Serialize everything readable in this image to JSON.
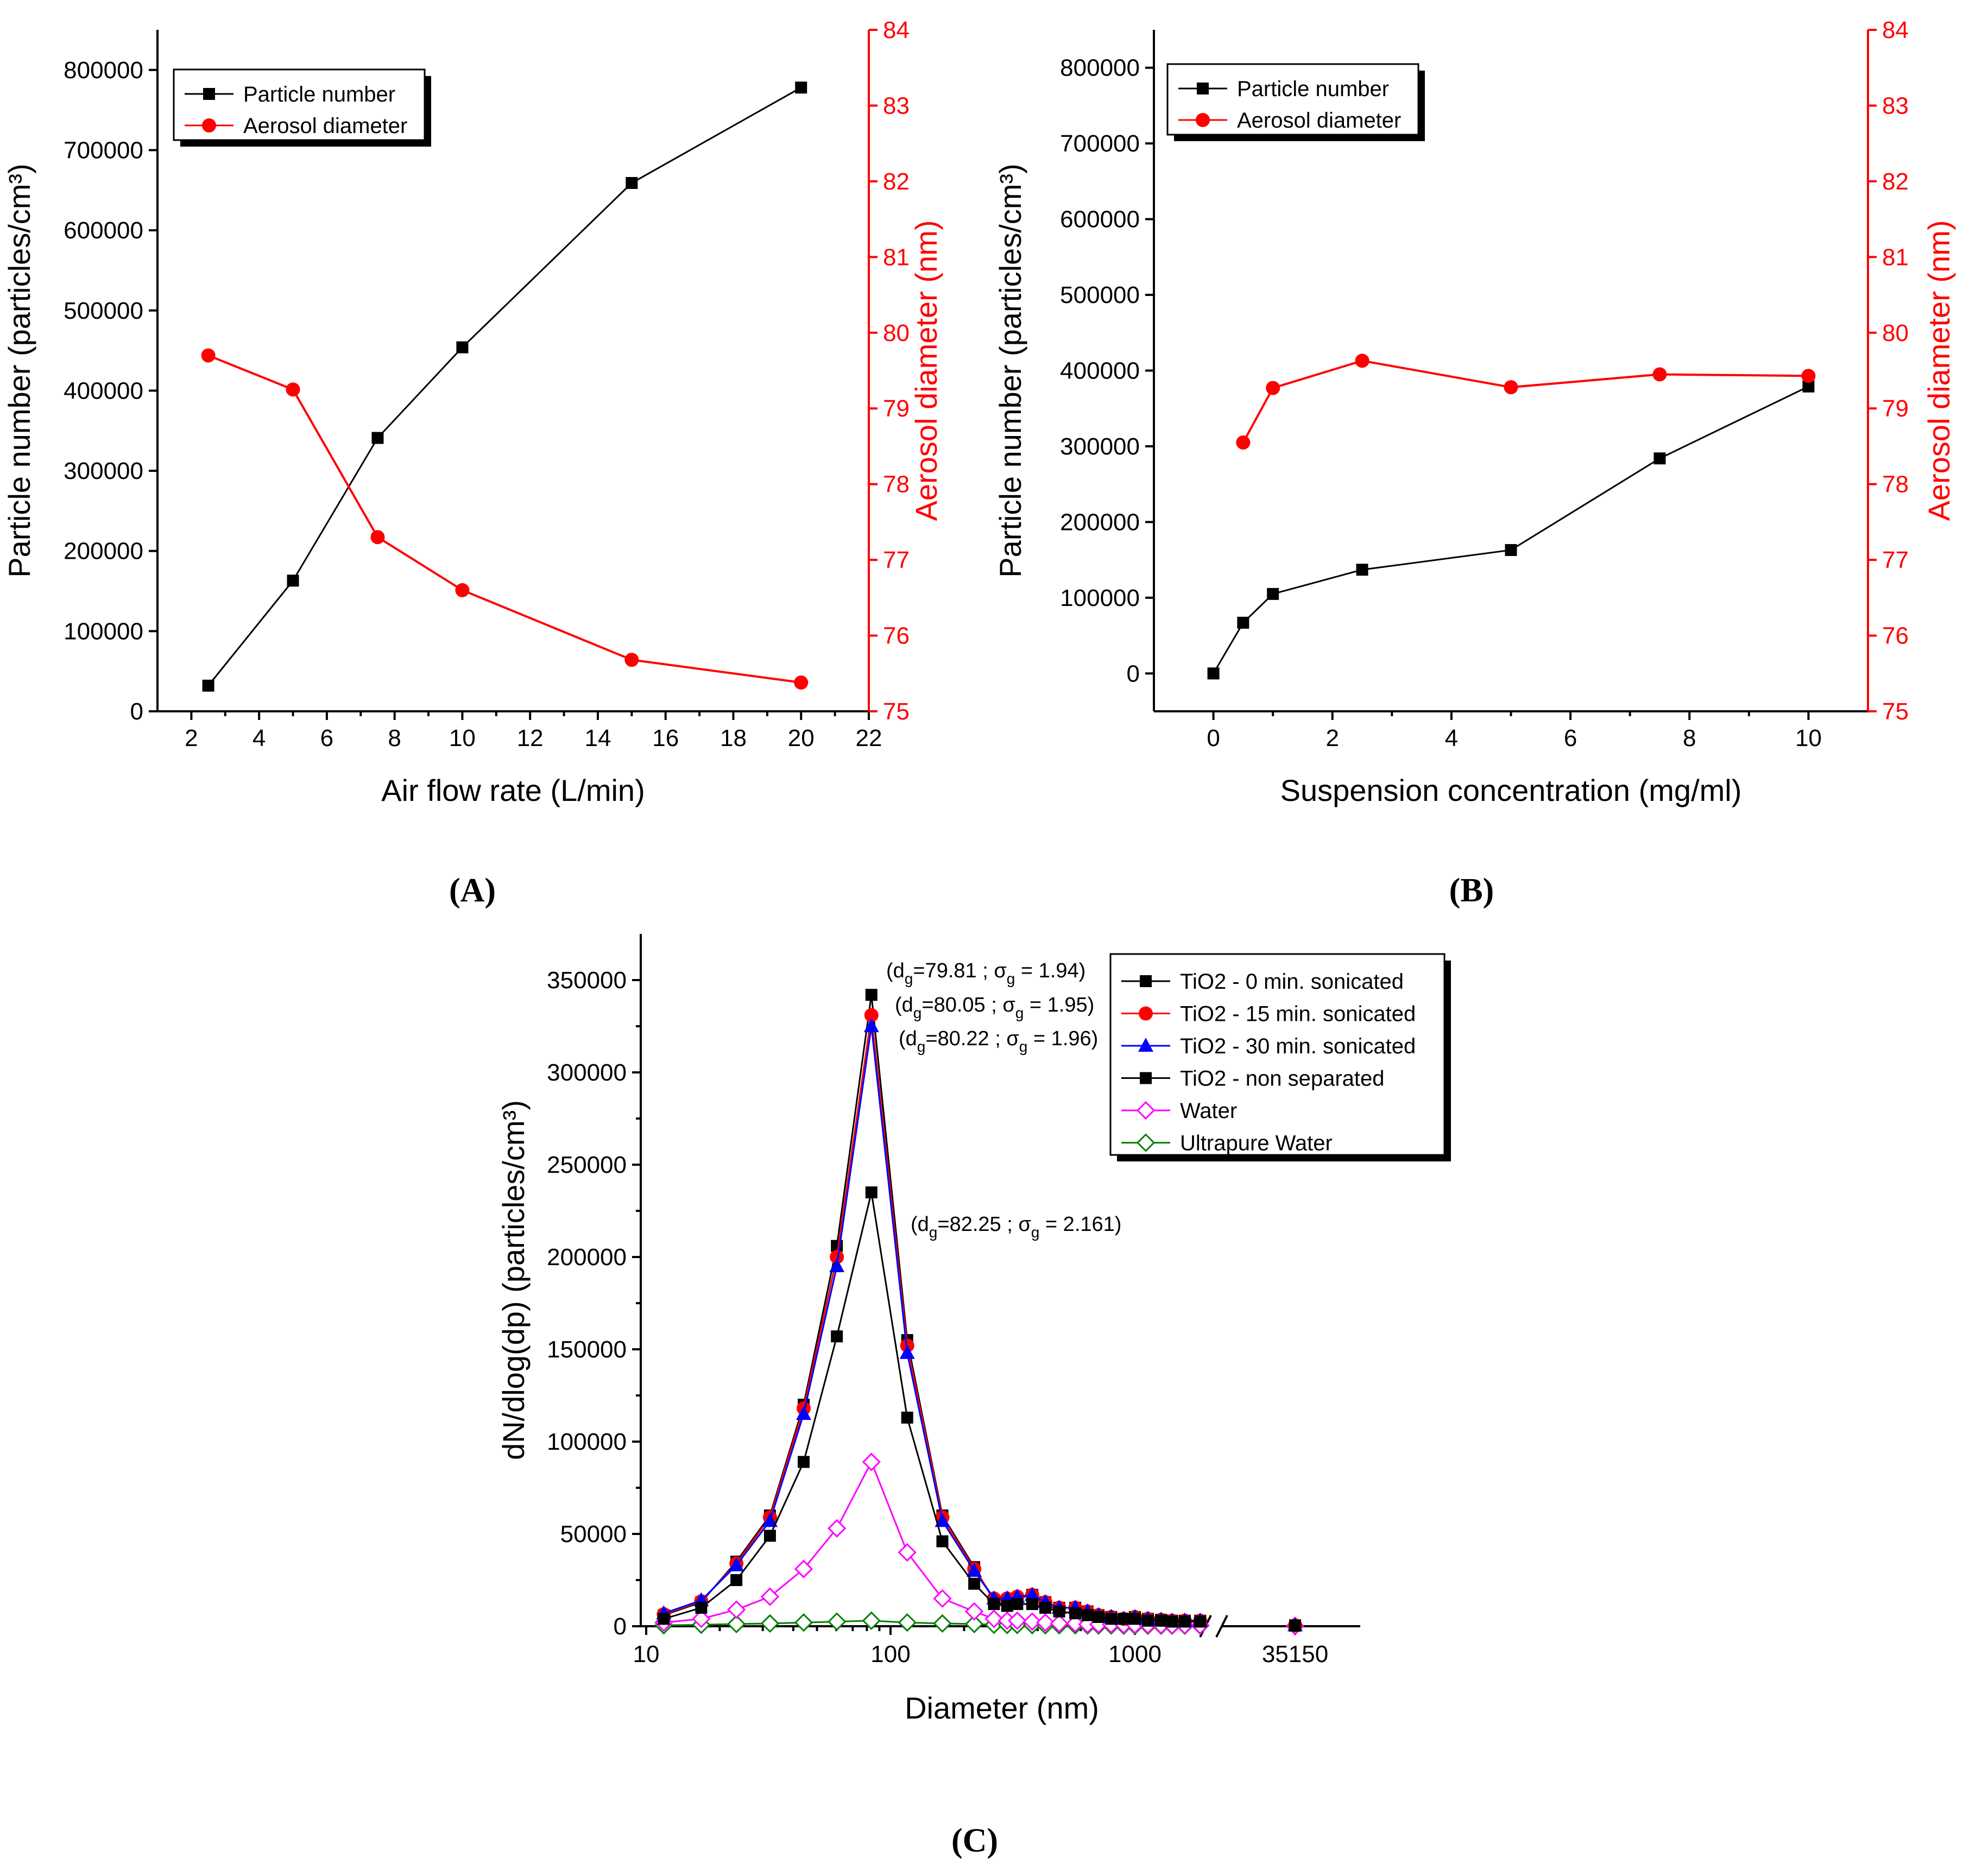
{
  "chart_data": [
    {
      "id": "A",
      "type": "line",
      "panel_label": "(A)",
      "xlabel": "Air flow rate (L/min)",
      "ylabel": "Particle number (particles/cm³)",
      "y2label": "Aerosol diameter (nm)",
      "xlim": [
        1,
        22
      ],
      "xticks": [
        2,
        4,
        6,
        8,
        10,
        12,
        14,
        16,
        18,
        20,
        22
      ],
      "ylim": [
        0,
        850000
      ],
      "yticks": [
        0,
        100000,
        200000,
        300000,
        400000,
        500000,
        600000,
        700000,
        800000
      ],
      "y2lim": [
        75,
        84
      ],
      "y2ticks": [
        75,
        76,
        77,
        78,
        79,
        80,
        81,
        82,
        83,
        84
      ],
      "series": [
        {
          "name": "Particle number",
          "axis": "left",
          "color": "#000000",
          "marker": "square",
          "x": [
            2.5,
            5,
            7.5,
            10,
            15,
            20
          ],
          "values": [
            32000,
            163000,
            341000,
            454000,
            659000,
            778000
          ]
        },
        {
          "name": "Aerosol diameter",
          "axis": "right",
          "color": "#ff0000",
          "marker": "circle",
          "x": [
            2.5,
            5,
            7.5,
            10,
            15,
            20
          ],
          "values": [
            79.7,
            79.25,
            77.3,
            76.6,
            75.68,
            75.38
          ]
        }
      ],
      "legend": [
        "Particle number",
        "Aerosol diameter"
      ]
    },
    {
      "id": "B",
      "type": "line",
      "panel_label": "(B)",
      "xlabel": "Suspension concentration (mg/ml)",
      "ylabel": "Particle number (particles/cm³)",
      "y2label": "Aerosol diameter (nm)",
      "xlim": [
        -1,
        11
      ],
      "xticks": [
        0,
        2,
        4,
        6,
        8,
        10
      ],
      "ylim": [
        -50000,
        850000
      ],
      "yticks": [
        0,
        100000,
        200000,
        300000,
        400000,
        500000,
        600000,
        700000,
        800000
      ],
      "y2lim": [
        75,
        84
      ],
      "y2ticks": [
        75,
        76,
        77,
        78,
        79,
        80,
        81,
        82,
        83,
        84
      ],
      "series": [
        {
          "name": "Particle number",
          "axis": "left",
          "color": "#000000",
          "marker": "square",
          "x": [
            0,
            0.5,
            1,
            2.5,
            5,
            7.5,
            10
          ],
          "values": [
            0,
            67000,
            105000,
            137000,
            163000,
            284000,
            379000
          ]
        },
        {
          "name": "Aerosol diameter",
          "axis": "right",
          "color": "#ff0000",
          "marker": "circle",
          "x": [
            0.5,
            1,
            2.5,
            5,
            7.5,
            10
          ],
          "values": [
            78.55,
            79.27,
            79.63,
            79.28,
            79.45,
            79.43
          ]
        }
      ],
      "legend": [
        "Particle number",
        "Aerosol diameter"
      ]
    },
    {
      "id": "C",
      "type": "line",
      "panel_label": "(C)",
      "xlabel": "Diameter (nm)",
      "ylabel": "dN/dlog(dp) (particles/cm³)",
      "xscale": "log (broken axis)",
      "xticks": [
        "10",
        "100",
        "1000",
        "35150"
      ],
      "ylim": [
        0,
        375000
      ],
      "yticks": [
        0,
        50000,
        100000,
        150000,
        200000,
        250000,
        300000,
        350000
      ],
      "categories": [
        11.8,
        16.8,
        23.4,
        32.1,
        44.1,
        60.3,
        83.5,
        117,
        163,
        220,
        265,
        300,
        330,
        380,
        430,
        490,
        570,
        640,
        710,
        800,
        900,
        1000,
        1130,
        1280,
        1420,
        1600,
        1850,
        35150
      ],
      "series": [
        {
          "name": "TiO2 - 0 min. sonicated",
          "color": "#000000",
          "marker": "square-filled",
          "values": [
            6000,
            13000,
            35000,
            60000,
            120000,
            206000,
            342000,
            155000,
            60000,
            32000,
            14000,
            14000,
            15000,
            17000,
            13000,
            10000,
            10000,
            8000,
            6000,
            5000,
            4000,
            5000,
            4000,
            3500,
            3000,
            3000,
            3000,
            500
          ]
        },
        {
          "name": "TiO2 - 15 min. sonicated",
          "color": "#ff0000",
          "marker": "circle-filled",
          "values": [
            6500,
            13500,
            34000,
            59000,
            118000,
            200000,
            331000,
            152000,
            59000,
            31000,
            15000,
            15000,
            16000,
            17000,
            13000,
            10000,
            10000,
            8000,
            6000,
            5000,
            4000,
            5000,
            4000,
            3500,
            3000,
            3000,
            3000,
            500
          ]
        },
        {
          "name": "TiO2 - 30 min. sonicated",
          "color": "#0000ff",
          "marker": "triangle-filled",
          "values": [
            7000,
            14000,
            33000,
            57000,
            115000,
            195000,
            325000,
            148000,
            57000,
            30000,
            15000,
            15000,
            16000,
            17000,
            13000,
            10000,
            10000,
            8000,
            6000,
            5000,
            4000,
            5000,
            4000,
            3500,
            3000,
            3000,
            3000,
            500
          ]
        },
        {
          "name": "TiO2 - non separated",
          "color": "#000000",
          "marker": "square-filled",
          "values": [
            4000,
            10000,
            25000,
            49000,
            89000,
            157000,
            235000,
            113000,
            46000,
            23000,
            12000,
            11000,
            12000,
            12000,
            10000,
            8000,
            7000,
            6000,
            5000,
            4000,
            4000,
            4000,
            3000,
            3000,
            2500,
            2500,
            2500,
            300
          ]
        },
        {
          "name": "Water",
          "color": "#ff00ff",
          "marker": "diamond-open",
          "values": [
            2000,
            4000,
            9000,
            16000,
            31000,
            53000,
            89000,
            40000,
            15000,
            8000,
            4000,
            3000,
            3000,
            2500,
            2000,
            1500,
            1500,
            1000,
            1000,
            1000,
            800,
            800,
            700,
            600,
            500,
            500,
            500,
            100
          ]
        },
        {
          "name": "Ultrapure Water",
          "color": "#008000",
          "marker": "diamond-open",
          "values": [
            500,
            800,
            1200,
            1500,
            2000,
            2500,
            3000,
            2000,
            1500,
            1200,
            800,
            700,
            700,
            600,
            500,
            500,
            500,
            400,
            400,
            400,
            300,
            300,
            300,
            300,
            300,
            300,
            300,
            100
          ]
        }
      ],
      "legend": [
        "TiO2 - 0 min. sonicated",
        "TiO2 - 15 min. sonicated",
        "TiO2 - 30 min. sonicated",
        "TiO2 - non separated",
        "Water",
        "Ultrapure Water"
      ],
      "annotations": [
        {
          "dg": "79.81",
          "sg": "1.94"
        },
        {
          "dg": "80.05",
          "sg": "1.95"
        },
        {
          "dg": "80.22",
          "sg": "1.96"
        },
        {
          "dg": "82.25",
          "sg": "2.161"
        }
      ]
    }
  ]
}
